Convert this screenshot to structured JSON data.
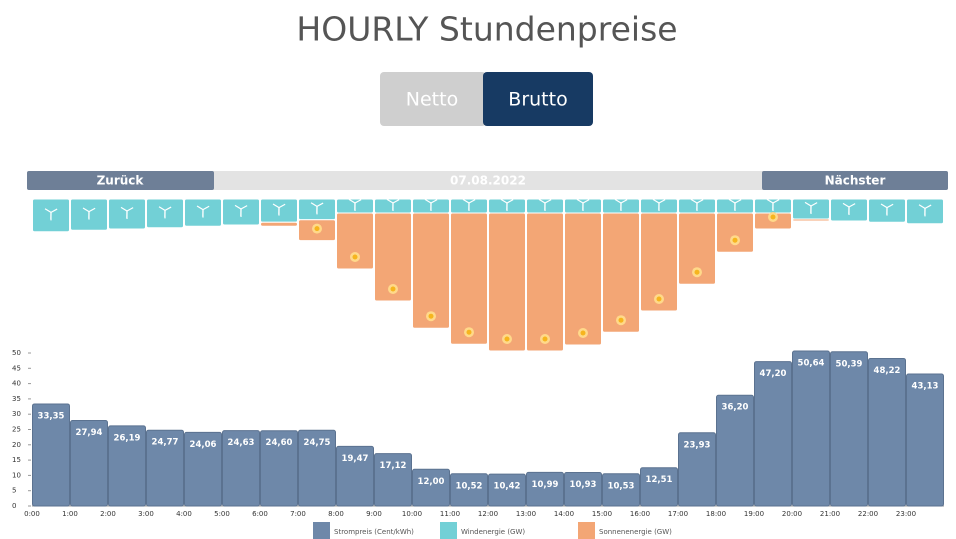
{
  "header": {
    "title": "HOURLY Stundenpreise"
  },
  "toggle": {
    "options": [
      "Netto",
      "Brutto"
    ],
    "active": 1
  },
  "nav": {
    "previous": "Zurück",
    "date": "07.08.2022",
    "next": "Nächster"
  },
  "chart_data": [
    {
      "type": "bar",
      "stacked": true,
      "categories": [
        "0:00",
        "1:00",
        "2:00",
        "3:00",
        "4:00",
        "5:00",
        "6:00",
        "7:00",
        "8:00",
        "9:00",
        "10:00",
        "11:00",
        "12:00",
        "13:00",
        "14:00",
        "15:00",
        "16:00",
        "17:00",
        "18:00",
        "19:00",
        "20:00",
        "21:00",
        "22:00",
        "23:00"
      ],
      "ylim": [
        0,
        40
      ],
      "series": [
        {
          "name": "Windenergie (GW)",
          "color": "#72d0d6",
          "values": [
            8.2,
            7.8,
            7.5,
            7.2,
            6.8,
            6.5,
            5.8,
            5.2,
            3.5,
            3.5,
            3.5,
            3.5,
            3.5,
            3.5,
            3.5,
            3.5,
            3.5,
            3.5,
            3.5,
            3.5,
            5,
            5.5,
            5.8,
            6.2
          ]
        },
        {
          "name": "Sonnenenergie (GW)",
          "color": "#f3a675",
          "values": [
            0,
            0,
            0,
            0,
            0,
            0,
            1,
            5.2,
            14,
            22,
            28.8,
            32.8,
            34.5,
            34.5,
            33,
            29.8,
            24.5,
            17.8,
            9.8,
            4,
            0.5,
            0.2,
            0,
            0
          ]
        }
      ]
    },
    {
      "type": "bar",
      "categories": [
        "0:00",
        "1:00",
        "2:00",
        "3:00",
        "4:00",
        "5:00",
        "6:00",
        "7:00",
        "8:00",
        "9:00",
        "10:00",
        "11:00",
        "12:00",
        "13:00",
        "14:00",
        "15:00",
        "16:00",
        "17:00",
        "18:00",
        "19:00",
        "20:00",
        "21:00",
        "22:00",
        "23:00"
      ],
      "ylim": [
        0,
        50
      ],
      "yticks": [
        0,
        5,
        10,
        15,
        20,
        25,
        30,
        35,
        40,
        45,
        50
      ],
      "grid": false,
      "series": [
        {
          "name": "Strompreis (Cent/kWh)",
          "color": "#6e88a9",
          "values": [
            33.35,
            27.94,
            26.19,
            24.77,
            24.06,
            24.63,
            24.6,
            24.75,
            19.47,
            17.12,
            12.0,
            10.52,
            10.42,
            10.99,
            10.93,
            10.53,
            12.51,
            23.93,
            36.2,
            47.2,
            50.64,
            50.39,
            48.22,
            43.13
          ],
          "value_labels": [
            "33,35",
            "27,94",
            "26,19",
            "24,77",
            "24,06",
            "24,63",
            "24,60",
            "24,75",
            "19,47",
            "17,12",
            "12,00",
            "10,52",
            "10,42",
            "10,99",
            "10,93",
            "10,53",
            "12,51",
            "23,93",
            "36,20",
            "47,20",
            "50,64",
            "50,39",
            "48,22",
            "43,13"
          ]
        }
      ]
    }
  ]
}
